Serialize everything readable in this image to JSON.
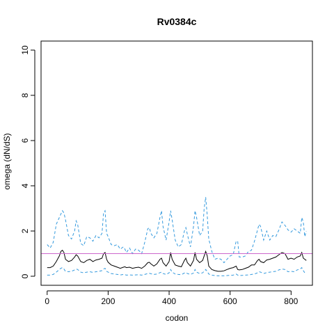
{
  "chart_data": {
    "type": "line",
    "title": "Rv0384c",
    "xlabel": "codon",
    "ylabel": "omega (dN/dS)",
    "xlim": [
      -20,
      870
    ],
    "ylim": [
      -0.4,
      10.4
    ],
    "xticks": [
      0,
      200,
      400,
      600,
      800
    ],
    "yticks": [
      0,
      2,
      4,
      6,
      8,
      10
    ],
    "grid": false,
    "reference_line": {
      "y": 1,
      "color": "#cc66cc"
    },
    "colors": {
      "mean": "#000000",
      "bounds": "#3399dd"
    },
    "series": [
      {
        "role": "upper",
        "style": "dashed",
        "x": [
          0,
          10,
          20,
          30,
          40,
          45,
          50,
          55,
          60,
          70,
          80,
          90,
          95,
          100,
          110,
          120,
          130,
          140,
          150,
          160,
          170,
          180,
          185,
          190,
          195,
          200,
          210,
          220,
          230,
          240,
          250,
          255,
          260,
          270,
          280,
          290,
          300,
          310,
          320,
          330,
          335,
          340,
          350,
          360,
          370,
          375,
          380,
          390,
          400,
          405,
          410,
          420,
          430,
          440,
          450,
          455,
          460,
          470,
          480,
          485,
          490,
          500,
          510,
          515,
          520,
          525,
          530,
          540,
          550,
          560,
          570,
          580,
          590,
          600,
          610,
          620,
          625,
          630,
          640,
          650,
          660,
          670,
          680,
          690,
          695,
          700,
          710,
          720,
          730,
          740,
          750,
          760,
          770,
          780,
          790,
          800,
          810,
          820,
          830,
          835,
          840,
          845,
          850
        ],
        "values": [
          1.4,
          1.25,
          1.5,
          2.3,
          2.6,
          2.75,
          2.9,
          2.8,
          2.5,
          1.8,
          1.65,
          2.0,
          2.45,
          2.3,
          1.45,
          1.35,
          1.75,
          1.7,
          1.55,
          1.8,
          1.7,
          1.9,
          2.8,
          2.9,
          1.9,
          1.75,
          1.4,
          1.35,
          1.4,
          1.2,
          1.3,
          1.2,
          1.05,
          1.25,
          1.0,
          1.2,
          1.15,
          1.0,
          1.5,
          2.1,
          2.15,
          1.9,
          1.7,
          1.9,
          2.6,
          2.9,
          2.2,
          1.6,
          2.4,
          2.9,
          2.5,
          1.6,
          1.3,
          1.4,
          2.0,
          2.15,
          1.85,
          1.3,
          2.2,
          2.9,
          2.6,
          1.8,
          2.0,
          3.0,
          3.5,
          2.7,
          1.65,
          1.1,
          0.75,
          0.8,
          0.75,
          0.6,
          0.75,
          0.9,
          0.95,
          1.55,
          1.55,
          0.85,
          0.85,
          0.9,
          1.1,
          1.15,
          1.55,
          2.05,
          2.3,
          2.2,
          1.6,
          2.0,
          1.6,
          1.8,
          1.75,
          2.05,
          2.4,
          2.25,
          2.05,
          1.95,
          2.1,
          2.0,
          1.9,
          2.6,
          2.4,
          1.75,
          2.0
        ]
      },
      {
        "role": "mean",
        "style": "solid",
        "x": [
          0,
          10,
          20,
          30,
          40,
          45,
          50,
          55,
          60,
          70,
          80,
          90,
          95,
          100,
          110,
          120,
          130,
          140,
          150,
          160,
          170,
          180,
          185,
          190,
          195,
          200,
          210,
          220,
          230,
          240,
          250,
          255,
          260,
          270,
          280,
          290,
          300,
          310,
          320,
          330,
          335,
          340,
          350,
          360,
          370,
          375,
          380,
          390,
          400,
          405,
          410,
          420,
          430,
          440,
          450,
          455,
          460,
          470,
          480,
          485,
          490,
          500,
          510,
          515,
          520,
          525,
          530,
          540,
          550,
          560,
          570,
          580,
          590,
          600,
          610,
          620,
          625,
          630,
          640,
          650,
          660,
          670,
          680,
          690,
          695,
          700,
          710,
          720,
          730,
          740,
          750,
          760,
          770,
          780,
          790,
          800,
          810,
          820,
          830,
          835,
          840,
          845,
          850
        ],
        "values": [
          0.38,
          0.38,
          0.45,
          0.65,
          0.9,
          1.1,
          1.15,
          1.05,
          0.75,
          0.65,
          0.7,
          0.85,
          0.95,
          0.9,
          0.65,
          0.6,
          0.7,
          0.75,
          0.65,
          0.72,
          0.75,
          0.8,
          1.0,
          1.05,
          0.75,
          0.62,
          0.5,
          0.45,
          0.4,
          0.35,
          0.4,
          0.42,
          0.38,
          0.4,
          0.35,
          0.38,
          0.4,
          0.35,
          0.45,
          0.6,
          0.62,
          0.55,
          0.45,
          0.55,
          0.75,
          0.8,
          0.6,
          0.45,
          0.65,
          1.05,
          0.75,
          0.5,
          0.45,
          0.42,
          0.7,
          0.8,
          0.6,
          0.45,
          0.7,
          1.05,
          0.75,
          0.6,
          0.7,
          0.9,
          1.1,
          0.9,
          0.45,
          0.3,
          0.25,
          0.22,
          0.22,
          0.24,
          0.3,
          0.35,
          0.38,
          0.45,
          0.3,
          0.28,
          0.3,
          0.35,
          0.4,
          0.5,
          0.5,
          0.7,
          0.75,
          0.65,
          0.6,
          0.72,
          0.75,
          0.8,
          0.85,
          0.95,
          1.05,
          1.0,
          0.75,
          0.8,
          0.75,
          0.85,
          0.9,
          1.05,
          0.8,
          0.75,
          0.7
        ]
      },
      {
        "role": "lower",
        "style": "dashed",
        "x": [
          0,
          10,
          20,
          30,
          40,
          45,
          50,
          55,
          60,
          70,
          80,
          90,
          95,
          100,
          110,
          120,
          130,
          140,
          150,
          160,
          170,
          180,
          185,
          190,
          195,
          200,
          210,
          220,
          230,
          240,
          250,
          255,
          260,
          270,
          280,
          290,
          300,
          310,
          320,
          330,
          335,
          340,
          350,
          360,
          370,
          375,
          380,
          390,
          400,
          405,
          410,
          420,
          430,
          440,
          450,
          455,
          460,
          470,
          480,
          485,
          490,
          500,
          510,
          515,
          520,
          525,
          530,
          540,
          550,
          560,
          570,
          580,
          590,
          600,
          610,
          620,
          625,
          630,
          640,
          650,
          660,
          670,
          680,
          690,
          695,
          700,
          710,
          720,
          730,
          740,
          750,
          760,
          770,
          780,
          790,
          800,
          810,
          820,
          830,
          835,
          840,
          845,
          850
        ],
        "values": [
          0.05,
          0.05,
          0.08,
          0.18,
          0.3,
          0.35,
          0.38,
          0.32,
          0.22,
          0.2,
          0.22,
          0.28,
          0.32,
          0.3,
          0.18,
          0.15,
          0.18,
          0.2,
          0.17,
          0.2,
          0.22,
          0.25,
          0.32,
          0.35,
          0.22,
          0.18,
          0.12,
          0.1,
          0.08,
          0.06,
          0.08,
          0.07,
          0.05,
          0.06,
          0.05,
          0.06,
          0.07,
          0.05,
          0.08,
          0.12,
          0.13,
          0.11,
          0.08,
          0.1,
          0.16,
          0.18,
          0.12,
          0.08,
          0.15,
          0.3,
          0.18,
          0.1,
          0.08,
          0.07,
          0.14,
          0.16,
          0.12,
          0.08,
          0.14,
          0.3,
          0.18,
          0.12,
          0.15,
          0.22,
          0.3,
          0.22,
          0.1,
          0.05,
          0.03,
          0.02,
          0.02,
          0.02,
          0.03,
          0.04,
          0.05,
          0.1,
          0.05,
          0.03,
          0.04,
          0.05,
          0.06,
          0.08,
          0.1,
          0.15,
          0.2,
          0.18,
          0.12,
          0.16,
          0.18,
          0.2,
          0.22,
          0.28,
          0.32,
          0.3,
          0.2,
          0.22,
          0.2,
          0.28,
          0.32,
          0.38,
          0.25,
          0.15,
          0.12
        ]
      }
    ]
  }
}
